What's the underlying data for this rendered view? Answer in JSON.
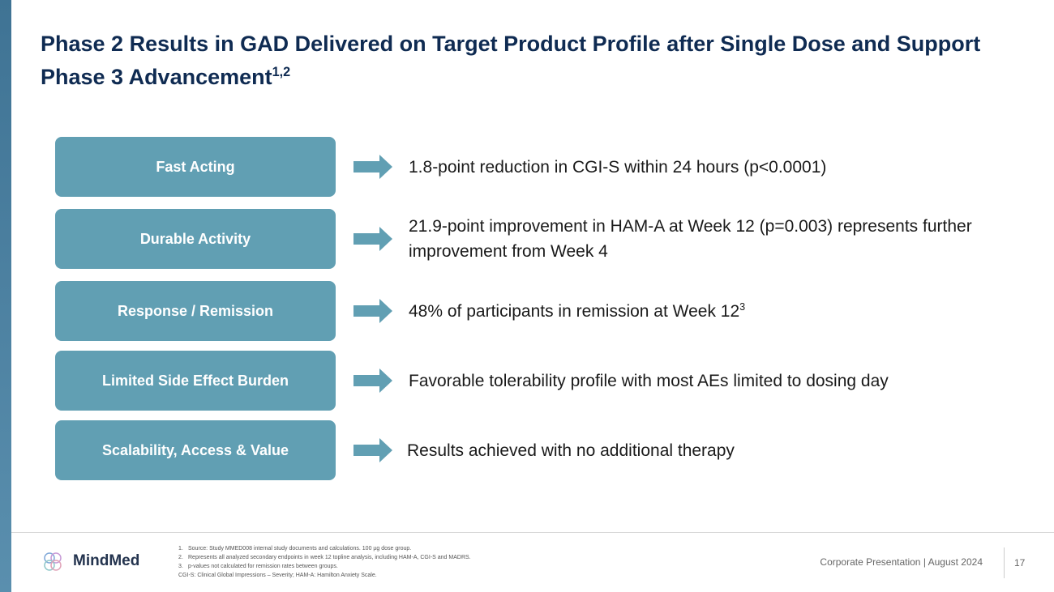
{
  "header": {
    "title": "Phase 2 Results in GAD Delivered on Target Product Profile after Single Dose and Support Phase 3 Advancement",
    "title_sup": "1,2"
  },
  "rows": [
    {
      "label": "Fast Acting",
      "text": "1.8-point reduction in CGI-S within 24 hours (p<0.0001)"
    },
    {
      "label": "Durable Activity",
      "text": "21.9-point improvement in HAM-A at Week 12 (p=0.003) represents further improvement from Week 4"
    },
    {
      "label": "Response / Remission",
      "text": "48% of participants in remission at Week 12",
      "sup": "3"
    },
    {
      "label": "Limited Side Effect Burden",
      "text": "Favorable tolerability profile with most AEs limited to dosing day"
    },
    {
      "label": "Scalability, Access & Value",
      "text": "Results achieved with no additional therapy"
    }
  ],
  "footnotes": [
    {
      "marker": "1.",
      "text": "Source: Study MMED008 internal study documents and calculations. 100 µg dose group."
    },
    {
      "marker": "2.",
      "text": "Represents all analyzed secondary endpoints in week 12 topline analysis, including HAM-A, CGI-S and MADRS."
    },
    {
      "marker": "3.",
      "text": "p-values not calculated for remission rates between groups."
    }
  ],
  "abbreviations": "CGI-S: Clinical Global Impressions – Severity;   HAM-A: Hamilton Anxiety Scale.",
  "footer": {
    "logo": "MindMed",
    "presentation": "Corporate Presentation | August 2024",
    "page": "17"
  }
}
